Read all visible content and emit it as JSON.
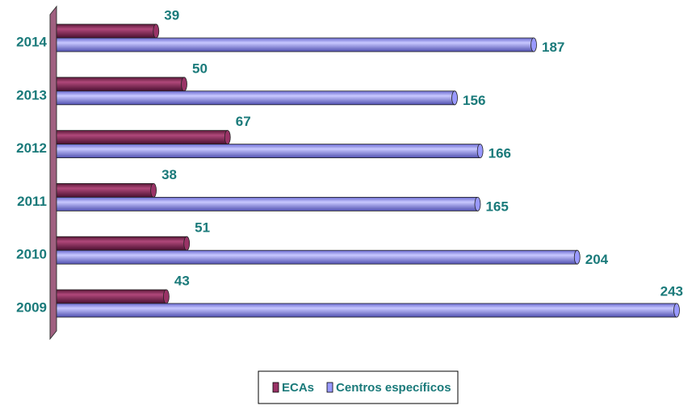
{
  "chart_data": {
    "type": "bar",
    "orientation": "horizontal",
    "categories": [
      "2014",
      "2013",
      "2012",
      "2011",
      "2010",
      "2009"
    ],
    "series": [
      {
        "name": "ECAs",
        "color": "#993366",
        "values": [
          39,
          50,
          67,
          38,
          51,
          43
        ]
      },
      {
        "name": "Centros específicos",
        "color": "#9999ff",
        "values": [
          187,
          156,
          166,
          165,
          204,
          243
        ]
      }
    ],
    "legend": "bottom"
  }
}
